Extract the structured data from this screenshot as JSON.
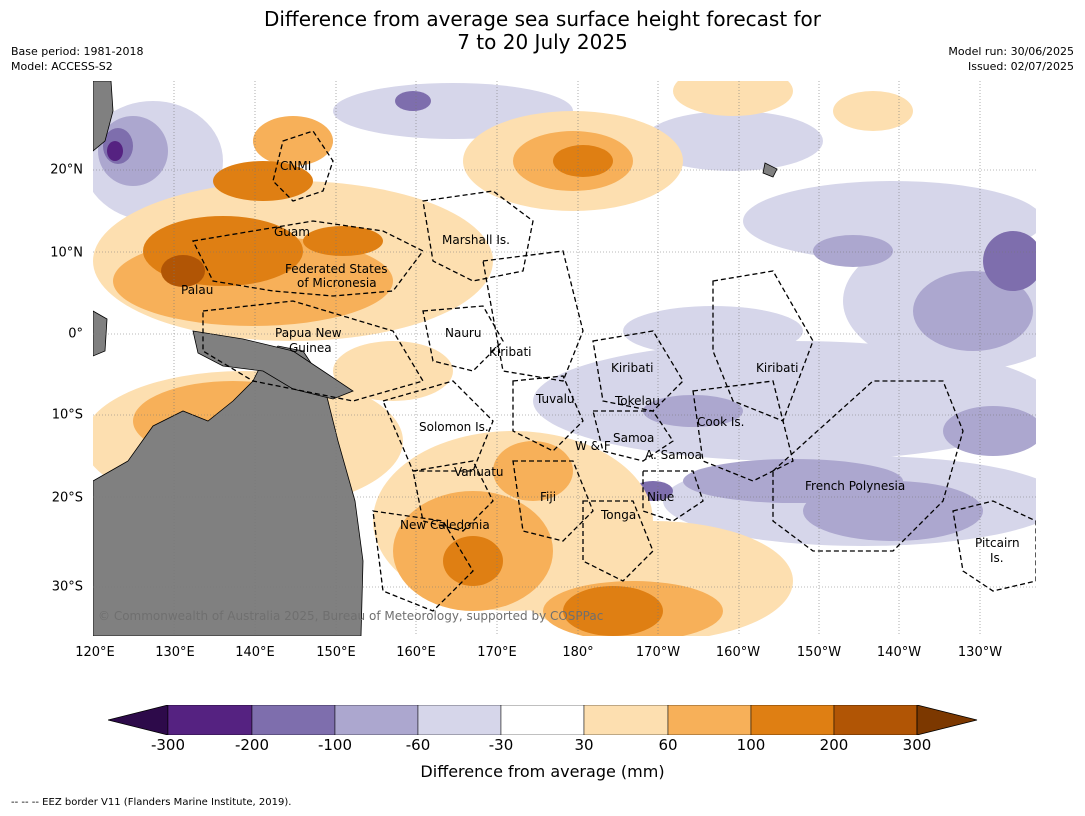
{
  "title_line1": "Difference from average sea surface height forecast for",
  "title_line2": "7 to 20 July 2025",
  "base_period": "Base period: 1981-2018",
  "model": "Model: ACCESS-S2",
  "model_run": "Model run: 30/06/2025",
  "issued": "Issued: 02/07/2025",
  "copyright": "© Commonwealth of Australia 2025, Bureau of Meteorology, supported by COSPPac",
  "footer_note": "--  --  -- EEZ border V11 (Flanders Marine Institute, 2019).",
  "lat_labels": [
    "20°N",
    "10°N",
    "0°",
    "10°S",
    "20°S",
    "30°S"
  ],
  "lon_labels": [
    "120°E",
    "130°E",
    "140°E",
    "150°E",
    "160°E",
    "170°E",
    "180°",
    "170°W",
    "160°W",
    "150°W",
    "140°W",
    "130°W"
  ],
  "place_labels": {
    "cnmi": "CNMI",
    "guam": "Guam",
    "marshall": "Marshall Is.",
    "fsm_1": "Federated States",
    "fsm_2": "of Micronesia",
    "palau": "Palau",
    "png_1": "Papua New",
    "png_2": "Guinea",
    "nauru": "Nauru",
    "kiribati_w": "Kiribati",
    "kiribati_c": "Kiribati",
    "kiribati_e": "Kiribati",
    "tuvalu": "Tuvalu",
    "tokelau": "Tokelau",
    "cook": "Cook Is.",
    "solomon": "Solomon Is.",
    "wf": "W & F",
    "samoa": "Samoa",
    "asamoa": "A. Samoa",
    "vanuatu": "Vanuatu",
    "fiji": "Fiji",
    "niue": "Niue",
    "frenchpoly": "French Polynesia",
    "tonga": "Tonga",
    "newcal": "New Caledonia",
    "pitcairn_1": "Pitcairn",
    "pitcairn_2": "Is."
  },
  "colorbar": {
    "label": "Difference from average (mm)",
    "ticks": [
      "-300",
      "-200",
      "-100",
      "-60",
      "-30",
      "30",
      "60",
      "100",
      "200",
      "300"
    ],
    "colors": [
      "#2d0a4a",
      "#552281",
      "#7e6ead",
      "#aca7cf",
      "#d6d6ea",
      "#ffffff",
      "#fddfb0",
      "#f7b059",
      "#df7f13",
      "#b15505",
      "#7c3800"
    ]
  },
  "colors": {
    "land": "#808080"
  }
}
